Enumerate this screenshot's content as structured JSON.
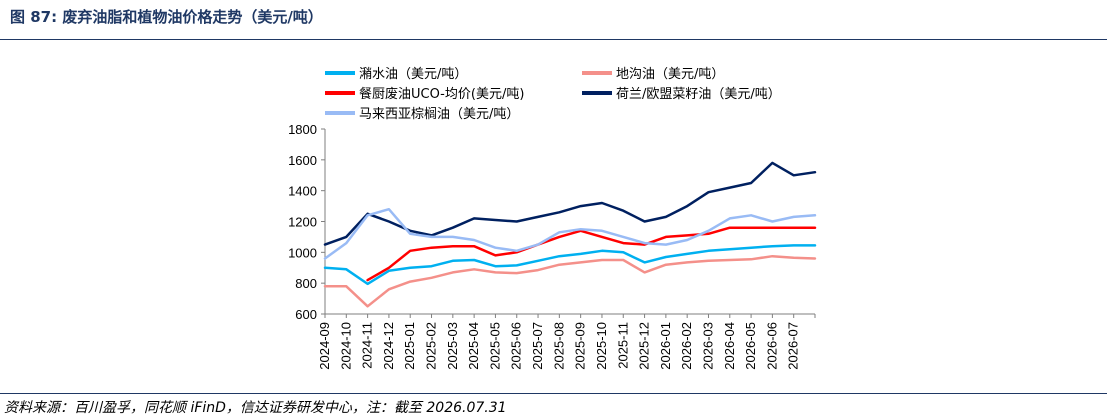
{
  "header": {
    "title": "图 87:  废弃油脂和植物油价格走势（美元/吨）"
  },
  "footer": {
    "source": "资料来源：百川盈孚，同花顺 iFinD，信达证券研发中心，注：截至 2026.07.31"
  },
  "chart_data": {
    "type": "line",
    "title": "",
    "xlabel": "",
    "ylabel": "",
    "ylim": [
      600,
      1800
    ],
    "yticks": [
      600,
      800,
      1000,
      1200,
      1400,
      1600,
      1800
    ],
    "x_range": [
      "2024-09",
      "2026-08"
    ],
    "x_tick_labels": [
      "2024-09",
      "2024-10",
      "2024-11",
      "2024-12",
      "2025-01",
      "2025-02",
      "2025-03",
      "2025-04",
      "2025-05",
      "2025-06",
      "2025-07",
      "2025-08",
      "2025-09",
      "2025-10",
      "2025-11",
      "2025-12",
      "2026-01",
      "2026-02",
      "2026-03",
      "2026-04",
      "2026-05",
      "2026-06",
      "2026-07"
    ],
    "x": [
      "2024-09",
      "2024-10",
      "2024-11",
      "2024-12",
      "2025-01",
      "2025-02",
      "2025-03",
      "2025-04",
      "2025-05",
      "2025-06",
      "2025-07",
      "2025-08",
      "2025-09",
      "2025-10",
      "2025-11",
      "2025-12",
      "2026-01",
      "2026-02",
      "2026-03",
      "2026-04",
      "2026-05",
      "2026-06",
      "2026-07",
      "2026-08"
    ],
    "grid": false,
    "legend_position": "top",
    "series": [
      {
        "name": "潲水油（美元/吨）",
        "color": "#00b0f0",
        "width": 2.5,
        "values": [
          900,
          890,
          795,
          880,
          900,
          910,
          945,
          950,
          910,
          915,
          945,
          975,
          990,
          1010,
          1000,
          935,
          970,
          990,
          1010,
          1020,
          1030,
          1040,
          1045,
          1045
        ]
      },
      {
        "name": "地沟油（美元/吨）",
        "color": "#f4908a",
        "width": 2.5,
        "values": [
          780,
          780,
          650,
          760,
          810,
          835,
          870,
          890,
          870,
          865,
          885,
          920,
          935,
          950,
          950,
          870,
          920,
          935,
          945,
          950,
          955,
          975,
          965,
          960
        ]
      },
      {
        "name": "餐厨废油UCO-均价(美元/吨)",
        "color": "#ff0000",
        "width": 2.5,
        "values": [
          null,
          null,
          820,
          900,
          1010,
          1030,
          1040,
          1040,
          980,
          1000,
          1050,
          1100,
          1140,
          1100,
          1060,
          1050,
          1100,
          1110,
          1120,
          1160,
          1160,
          1160,
          1160,
          1160
        ]
      },
      {
        "name": "荷兰/欧盟菜籽油（美元/吨）",
        "color": "#002060",
        "width": 2.5,
        "values": [
          1050,
          1100,
          1250,
          1200,
          1140,
          1110,
          1160,
          1220,
          1210,
          1200,
          1230,
          1260,
          1300,
          1320,
          1270,
          1200,
          1230,
          1300,
          1390,
          1420,
          1450,
          1580,
          1500,
          1520
        ]
      },
      {
        "name": "马来西亚棕榈油（美元/吨）",
        "color": "#99bbf5",
        "width": 2.5,
        "values": [
          960,
          1060,
          1240,
          1280,
          1120,
          1100,
          1100,
          1080,
          1030,
          1010,
          1050,
          1130,
          1150,
          1140,
          1100,
          1060,
          1050,
          1080,
          1140,
          1220,
          1240,
          1200,
          1230,
          1240
        ]
      }
    ]
  }
}
